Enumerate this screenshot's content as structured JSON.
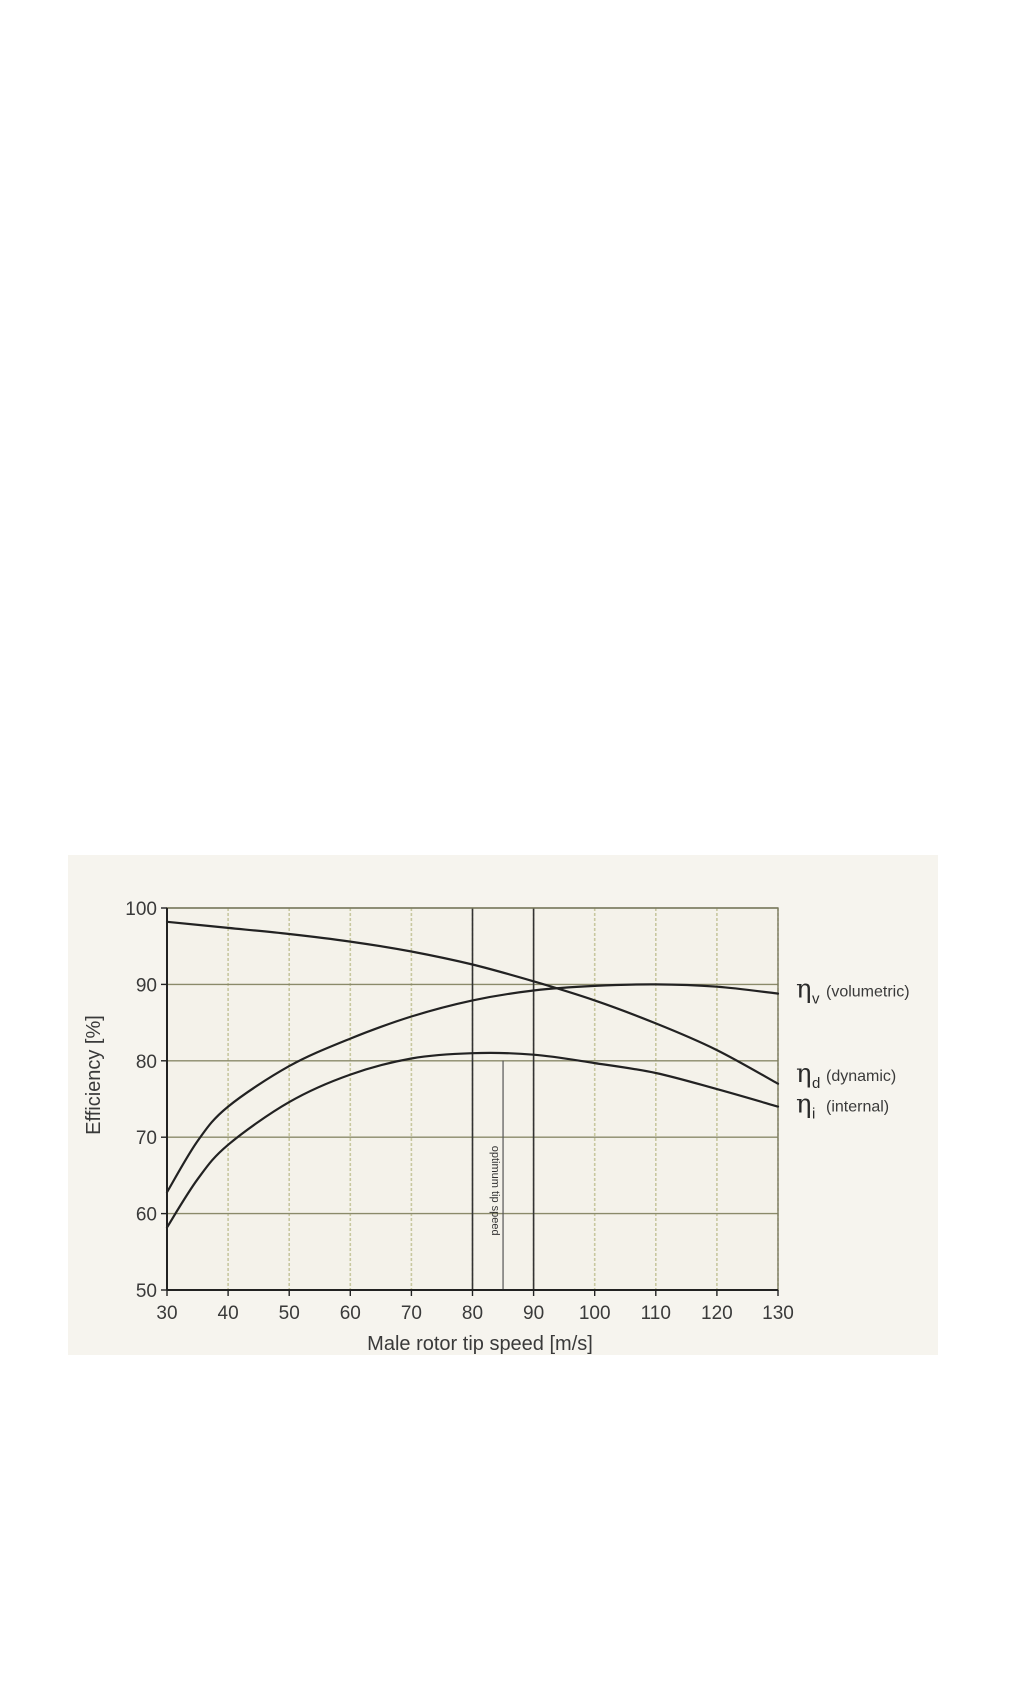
{
  "chart_data": {
    "type": "line",
    "title": "",
    "xlabel": "Male rotor tip speed [m/s]",
    "ylabel": "Efficiency [%]",
    "xlim": [
      30,
      130
    ],
    "ylim": [
      50,
      100
    ],
    "xticks": [
      30,
      40,
      50,
      60,
      70,
      80,
      90,
      100,
      110,
      120,
      130
    ],
    "yticks": [
      50,
      60,
      70,
      80,
      90,
      100
    ],
    "grid": true,
    "colors": {
      "background": "#f4f2ea",
      "grid": "#c8c8a0",
      "major_grid": "#8a8a6a",
      "curve": "#222222"
    },
    "series": [
      {
        "symbol": "η",
        "sub": "v",
        "desc": "(volumetric)",
        "x": [
          30,
          40,
          50,
          60,
          70,
          80,
          90,
          100,
          110,
          120,
          130
        ],
        "y": [
          98.2,
          97.4,
          96.6,
          95.6,
          94.3,
          92.6,
          90.4,
          87.9,
          84.9,
          81.4,
          77.0
        ]
      },
      {
        "symbol": "η",
        "sub": "d",
        "desc": "(dynamic)",
        "x": [
          30,
          35,
          40,
          50,
          60,
          70,
          80,
          90,
          100,
          110,
          120,
          130
        ],
        "y": [
          62.8,
          69.5,
          74.0,
          79.3,
          82.9,
          85.8,
          87.9,
          89.2,
          89.8,
          90.0,
          89.7,
          88.8
        ]
      },
      {
        "symbol": "η",
        "sub": "i",
        "desc": "(internal)",
        "x": [
          30,
          35,
          40,
          50,
          60,
          70,
          80,
          90,
          100,
          110,
          120,
          130
        ],
        "y": [
          58.2,
          64.5,
          69.0,
          74.6,
          78.2,
          80.3,
          81.0,
          80.8,
          79.7,
          78.4,
          76.3,
          74.0
        ]
      }
    ],
    "annotations": [
      {
        "text": "optimum tip speed",
        "x_range": [
          80,
          85
        ]
      }
    ]
  }
}
